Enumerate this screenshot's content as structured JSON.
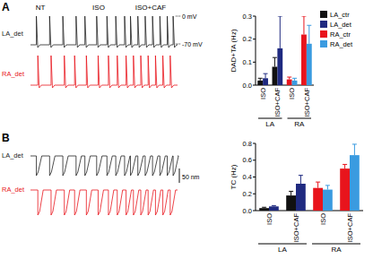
{
  "chart_data": [
    {
      "type": "bar",
      "panel_label": "A",
      "y_label": "DAD+TA (Hz)",
      "traces": {
        "conditions": [
          "NT",
          "ISO",
          "ISO+CAF"
        ],
        "rows": [
          "LA_det",
          "RA_det"
        ],
        "scale_labels": [
          "0 mV",
          "-70 mV"
        ]
      },
      "categories": [
        "ISO",
        "ISO+CAF",
        "ISO",
        "ISO+CAF"
      ],
      "groups": [
        "LA",
        "RA"
      ],
      "series": [
        {
          "name": "LA_ctr",
          "color": "#111111",
          "values": [
            0.02,
            0.08,
            null,
            null
          ],
          "errors": [
            0.01,
            0.04,
            null,
            null
          ]
        },
        {
          "name": "LA_det",
          "color": "#1f2a80",
          "values": [
            0.03,
            0.16,
            null,
            null
          ],
          "errors": [
            0.02,
            0.14,
            null,
            null
          ]
        },
        {
          "name": "RA_ctr",
          "color": "#e8141c",
          "values": [
            null,
            null,
            0.025,
            0.22
          ],
          "errors": [
            null,
            null,
            0.01,
            0.08
          ]
        },
        {
          "name": "RA_det",
          "color": "#3a9be0",
          "values": [
            null,
            null,
            0.02,
            0.18
          ],
          "errors": [
            null,
            null,
            0.01,
            0.08
          ]
        }
      ],
      "ylim": [
        0,
        0.3
      ],
      "yticks": [
        {
          "value": 0,
          "label": "0.0"
        },
        {
          "value": 0.1,
          "label": "0.1"
        },
        {
          "value": 0.2,
          "label": "0.2"
        },
        {
          "value": 0.3,
          "label": "0.3"
        }
      ],
      "legend": "right"
    },
    {
      "type": "bar",
      "panel_label": "B",
      "y_label": "TC (Hz)",
      "traces": {
        "conditions": [],
        "rows": [
          "LA_det",
          "RA_det"
        ],
        "scale_labels": [
          "50 nm"
        ]
      },
      "categories": [
        "ISO",
        "ISO+CAF",
        "ISO",
        "ISO+CAF"
      ],
      "groups": [
        "LA",
        "RA"
      ],
      "series": [
        {
          "name": "LA_ctr",
          "color": "#111111",
          "values": [
            0.03,
            0.18,
            null,
            null
          ],
          "errors": [
            0.01,
            0.05,
            null,
            null
          ]
        },
        {
          "name": "LA_det",
          "color": "#1f2a80",
          "values": [
            0.05,
            0.32,
            null,
            null
          ],
          "errors": [
            0.01,
            0.1,
            null,
            null
          ]
        },
        {
          "name": "RA_ctr",
          "color": "#e8141c",
          "values": [
            null,
            null,
            0.27,
            0.5
          ],
          "errors": [
            null,
            null,
            0.07,
            0.05
          ]
        },
        {
          "name": "RA_det",
          "color": "#3a9be0",
          "values": [
            null,
            null,
            0.25,
            0.66
          ],
          "errors": [
            null,
            null,
            0.05,
            0.13
          ]
        }
      ],
      "ylim": [
        0,
        0.8
      ],
      "yticks": [
        {
          "value": 0,
          "label": "0.0"
        },
        {
          "value": 0.2,
          "label": "0.2"
        },
        {
          "value": 0.4,
          "label": "0.4"
        },
        {
          "value": 0.6,
          "label": "0.6"
        },
        {
          "value": 0.8,
          "label": "0.8"
        }
      ]
    }
  ]
}
